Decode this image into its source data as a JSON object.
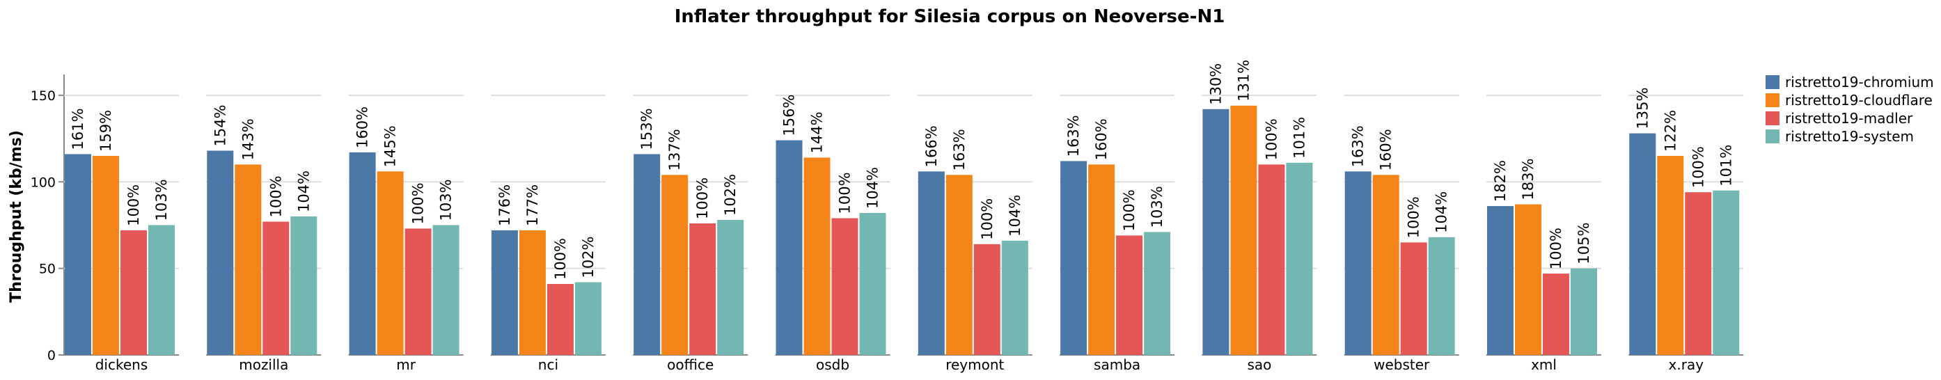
{
  "chart_data": {
    "type": "bar",
    "title": "Inflater throughput for Silesia corpus on Neoverse-N1",
    "xlabel": "",
    "ylabel": "Throughput (kb/ms)",
    "ylim": [
      0,
      160
    ],
    "yticks": [
      0,
      50,
      100,
      150
    ],
    "grid": true,
    "legend_position": "right",
    "categories": [
      "dickens",
      "mozilla",
      "mr",
      "nci",
      "ooffice",
      "osdb",
      "reymont",
      "samba",
      "sao",
      "webster",
      "xml",
      "x.ray"
    ],
    "series": [
      {
        "name": "ristretto19-chromium",
        "color": "#4c78a8",
        "values": [
          116,
          118,
          117,
          72,
          116,
          124,
          106,
          112,
          142,
          106,
          86,
          128
        ],
        "labels": [
          "161%",
          "154%",
          "160%",
          "176%",
          "153%",
          "156%",
          "166%",
          "163%",
          "130%",
          "163%",
          "182%",
          "135%"
        ]
      },
      {
        "name": "ristretto19-cloudflare",
        "color": "#f58518",
        "values": [
          115,
          110,
          106,
          72,
          104,
          114,
          104,
          110,
          144,
          104,
          87,
          115
        ],
        "labels": [
          "159%",
          "143%",
          "145%",
          "177%",
          "137%",
          "144%",
          "163%",
          "160%",
          "131%",
          "160%",
          "183%",
          "122%"
        ]
      },
      {
        "name": "ristretto19-madler",
        "color": "#e45756",
        "values": [
          72,
          77,
          73,
          41,
          76,
          79,
          64,
          69,
          110,
          65,
          47,
          94
        ],
        "labels": [
          "100%",
          "100%",
          "100%",
          "100%",
          "100%",
          "100%",
          "100%",
          "100%",
          "100%",
          "100%",
          "100%",
          "100%"
        ]
      },
      {
        "name": "ristretto19-system",
        "color": "#72b7b2",
        "values": [
          75,
          80,
          75,
          42,
          78,
          82,
          66,
          71,
          111,
          68,
          50,
          95
        ],
        "labels": [
          "103%",
          "104%",
          "103%",
          "102%",
          "102%",
          "104%",
          "104%",
          "103%",
          "101%",
          "104%",
          "105%",
          "101%"
        ]
      }
    ]
  }
}
